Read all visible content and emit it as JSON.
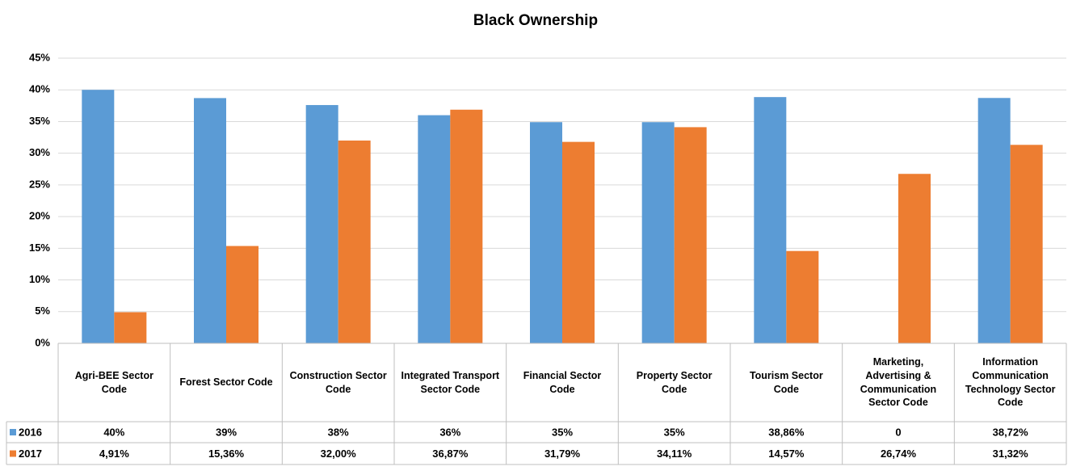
{
  "chart_data": {
    "type": "bar",
    "title": "Black Ownership",
    "categories": [
      "Agri-BEE Sector Code",
      "Forest Sector Code",
      "Construction Sector Code",
      "Integrated Transport Sector Code",
      "Financial Sector Code",
      "Property Sector Code",
      "Tourism Sector Code",
      "Marketing, Advertising & Communication Sector Code",
      "Information Communication Technology Sector Code"
    ],
    "series": [
      {
        "name": "2016",
        "color": "#5b9bd5",
        "values": [
          40,
          38.7,
          37.6,
          36,
          34.9,
          34.9,
          38.86,
          0,
          38.72
        ],
        "value_labels": [
          "40%",
          "39%",
          "38%",
          "36%",
          "35%",
          "35%",
          "38,86%",
          "0",
          "38,72%"
        ]
      },
      {
        "name": "2017",
        "color": "#ed7d31",
        "values": [
          4.91,
          15.36,
          32.0,
          36.87,
          31.79,
          34.11,
          14.57,
          26.74,
          31.32
        ],
        "value_labels": [
          "4,91%",
          "15,36%",
          "32,00%",
          "36,87%",
          "31,79%",
          "34,11%",
          "14,57%",
          "26,74%",
          "31,32%"
        ]
      }
    ],
    "ylim": [
      0,
      45
    ],
    "yticks": [
      {
        "value": 0,
        "label": "0%"
      },
      {
        "value": 5,
        "label": "5%"
      },
      {
        "value": 10,
        "label": "10%"
      },
      {
        "value": 15,
        "label": "15%"
      },
      {
        "value": 20,
        "label": "20%"
      },
      {
        "value": 25,
        "label": "25%"
      },
      {
        "value": 30,
        "label": "30%"
      },
      {
        "value": 35,
        "label": "35%"
      },
      {
        "value": 40,
        "label": "40%"
      },
      {
        "value": 45,
        "label": "45%"
      }
    ],
    "grid": true
  }
}
